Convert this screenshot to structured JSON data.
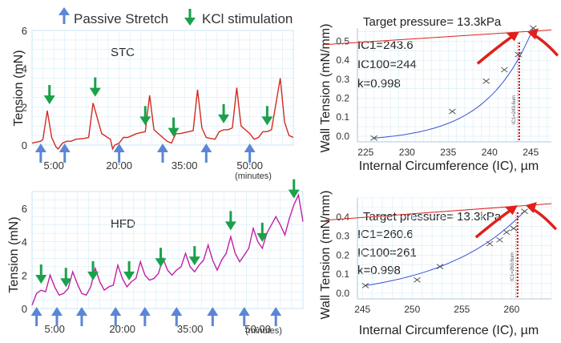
{
  "legend": {
    "passive_label": "Passive Stretch",
    "kcl_label": "KCl stimulation",
    "passive_color": "#5b86d6",
    "kcl_color": "#1aa14a"
  },
  "chart_data": [
    {
      "type": "line",
      "panel": "top-left",
      "title": "STC",
      "ylabel": "Tension (mN)",
      "xlabel": "(minutes)",
      "xlim": [
        0,
        60
      ],
      "ylim": [
        0,
        6
      ],
      "yticks": [
        "0",
        "2",
        "4",
        "6"
      ],
      "xticks": [
        {
          "v": 5,
          "label": "5:00"
        },
        {
          "v": 20,
          "label": "20:00"
        },
        {
          "v": 35,
          "label": "35:00"
        },
        {
          "v": 50,
          "label": "50:00"
        }
      ],
      "line_color": "#d42a1e",
      "series": [
        {
          "name": "tension",
          "x": [
            0,
            2,
            2.5,
            3.5,
            4.5,
            5,
            5.5,
            6,
            7,
            8,
            9,
            10,
            12,
            13,
            14,
            16,
            18,
            18.5,
            19,
            20,
            21,
            22,
            24,
            26,
            27,
            28,
            30,
            31,
            32,
            33,
            34,
            36,
            37,
            38,
            39,
            40,
            42,
            43,
            44,
            45,
            46,
            47,
            48,
            50,
            51,
            52,
            53,
            54,
            55,
            57,
            58,
            59,
            60
          ],
          "y": [
            0.1,
            0.2,
            0.3,
            1.8,
            0.4,
            0.15,
            -0.1,
            -0.2,
            0.1,
            0.2,
            0.2,
            0.3,
            0.35,
            0.4,
            2.2,
            0.6,
            0.3,
            -0.2,
            0.0,
            0.1,
            0.4,
            0.4,
            0.6,
            0.7,
            2.6,
            0.8,
            0.4,
            0.2,
            0.1,
            0.6,
            0.6,
            0.7,
            0.75,
            2.9,
            0.9,
            0.4,
            0.3,
            0.7,
            0.8,
            0.8,
            0.9,
            3.0,
            1.0,
            0.6,
            0.3,
            0.4,
            0.7,
            0.7,
            0.8,
            3.5,
            1.2,
            0.5,
            0.4
          ]
        }
      ],
      "passive_arrows_x": [
        2,
        7.5,
        20,
        30,
        40,
        50
      ],
      "kcl_arrows_x": [
        4,
        14.5,
        26,
        32.5,
        44,
        54
      ]
    },
    {
      "type": "line",
      "panel": "bottom-left",
      "title": "HFD",
      "ylabel": "Tension (mN)",
      "xlabel": "(minutes)",
      "xlim": [
        0,
        60
      ],
      "ylim": [
        0,
        7
      ],
      "yticks": [
        "0",
        "2",
        "4",
        "6"
      ],
      "xticks": [
        {
          "v": 5,
          "label": "5:00"
        },
        {
          "v": 20,
          "label": "20:00"
        },
        {
          "v": 35,
          "label": "35:00"
        },
        {
          "v": 50,
          "label": "50:00"
        }
      ],
      "line_color": "#c21fa6",
      "series": [
        {
          "name": "tension",
          "x": [
            0,
            1,
            2,
            3,
            4,
            5,
            6,
            7,
            8,
            9,
            10,
            11,
            12,
            13,
            14,
            15,
            16,
            17,
            18,
            19,
            20,
            21,
            22,
            23,
            24,
            25,
            26,
            27,
            28,
            29,
            30,
            31,
            32,
            33,
            34,
            35,
            36,
            37,
            38,
            39,
            40,
            41,
            42,
            43,
            44,
            45,
            46,
            47,
            48,
            49,
            50,
            51,
            52,
            53,
            54,
            55,
            56,
            57,
            58,
            59,
            60
          ],
          "y": [
            0.2,
            0.9,
            1.1,
            1.0,
            2.0,
            1.3,
            0.8,
            0.9,
            1.2,
            2.2,
            1.5,
            0.9,
            0.8,
            1.3,
            2.4,
            1.6,
            1.1,
            1.3,
            1.4,
            2.6,
            1.8,
            1.3,
            1.6,
            1.8,
            2.8,
            2.0,
            1.7,
            1.8,
            2.1,
            3.0,
            2.3,
            2.0,
            2.3,
            2.5,
            3.3,
            2.5,
            2.2,
            2.6,
            2.9,
            3.8,
            2.9,
            2.3,
            2.9,
            3.3,
            4.3,
            3.3,
            2.8,
            3.2,
            3.6,
            4.8,
            4.0,
            3.6,
            4.5,
            5.0,
            5.5,
            5.0,
            4.4,
            5.4,
            6.2,
            6.8,
            5.2
          ]
        }
      ],
      "passive_arrows_x": [
        1,
        5.5,
        11,
        18.5,
        25,
        32,
        40,
        47,
        54
      ],
      "kcl_arrows_x": [
        2,
        7.5,
        13.5,
        21.5,
        28.5,
        36,
        44,
        51,
        58
      ]
    },
    {
      "type": "scatter",
      "panel": "top-right",
      "ylabel": "Wall Tension (mN/mm)",
      "xlabel": "Internal Circumference (IC), µm",
      "xlim": [
        224,
        247.5
      ],
      "ylim": [
        -0.03,
        0.57
      ],
      "xticks": [
        "225",
        "230",
        "235",
        "240",
        "245"
      ],
      "yticks": [
        "0.0",
        "0.1",
        "0.2",
        "0.3",
        "0.4",
        "0.5"
      ],
      "target_pressure": "Target pressure= 13.3kPa",
      "annotations": [
        "IC1=243.6",
        "IC100=244",
        "k=0.998"
      ],
      "points_x": [
        226,
        235.5,
        239.6,
        241.8,
        243.5,
        245.3
      ],
      "points_y": [
        -0.01,
        0.13,
        0.29,
        0.35,
        0.43,
        0.57
      ],
      "ic_marker": 243.6,
      "ic_marker_label": "IC1=243.6um",
      "pressure_line_y": [
        0.5,
        0.56
      ],
      "curve_color": "#3a4fd6",
      "pressure_color": "#e0201a"
    },
    {
      "type": "scatter",
      "panel": "bottom-right",
      "ylabel": "Wall Tension (mN/mm)",
      "xlabel": "Internal Circumference (IC), µm",
      "xlim": [
        244.5,
        264
      ],
      "ylim": [
        -0.03,
        0.5
      ],
      "xticks": [
        "245",
        "250",
        "255",
        "260"
      ],
      "yticks": [
        "0.0",
        "0.1",
        "0.2",
        "0.3",
        "0.4"
      ],
      "target_pressure": "Target pressure= 13.3kPa",
      "annotations": [
        "IC1=260.6",
        "IC100=261",
        "k=0.998"
      ],
      "points_x": [
        245.3,
        250.5,
        252.8,
        257.8,
        258.8,
        259.5,
        260.2,
        261.3
      ],
      "points_y": [
        0.04,
        0.07,
        0.14,
        0.26,
        0.28,
        0.32,
        0.34,
        0.43
      ],
      "ic_marker": 260.6,
      "ic_marker_label": "IC1=260.6um",
      "pressure_line_y": [
        0.4,
        0.47
      ],
      "curve_color": "#3a4fd6",
      "pressure_color": "#e0201a"
    }
  ]
}
